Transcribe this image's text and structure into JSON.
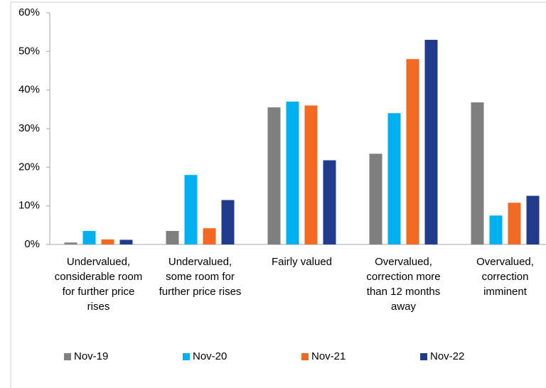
{
  "chart_data": {
    "type": "bar",
    "categories": [
      "Undervalued, considerable room for further price rises",
      "Undervalued, some room for further price rises",
      "Fairly valued",
      "Overvalued, correction more than 12 months away",
      "Overvalued, correction imminent"
    ],
    "series": [
      {
        "name": "Nov-19",
        "color": "#7f7f7f",
        "values": [
          0.5,
          3.5,
          35.5,
          23.5,
          36.8
        ]
      },
      {
        "name": "Nov-20",
        "color": "#00b0f0",
        "values": [
          3.5,
          18,
          37,
          34,
          7.5
        ]
      },
      {
        "name": "Nov-21",
        "color": "#f26a21",
        "values": [
          1.3,
          4.2,
          36,
          48,
          10.8
        ]
      },
      {
        "name": "Nov-22",
        "color": "#203a8c",
        "values": [
          1.2,
          11.5,
          21.8,
          53,
          12.6
        ]
      }
    ],
    "ylim": [
      0,
      60
    ],
    "yticks": [
      {
        "value": 0,
        "label": "0%"
      },
      {
        "value": 10,
        "label": "10%"
      },
      {
        "value": 20,
        "label": "20%"
      },
      {
        "value": 30,
        "label": "30%"
      },
      {
        "value": 40,
        "label": "40%"
      },
      {
        "value": 50,
        "label": "50%"
      },
      {
        "value": 60,
        "label": "60%"
      }
    ],
    "legend": "bottom"
  }
}
